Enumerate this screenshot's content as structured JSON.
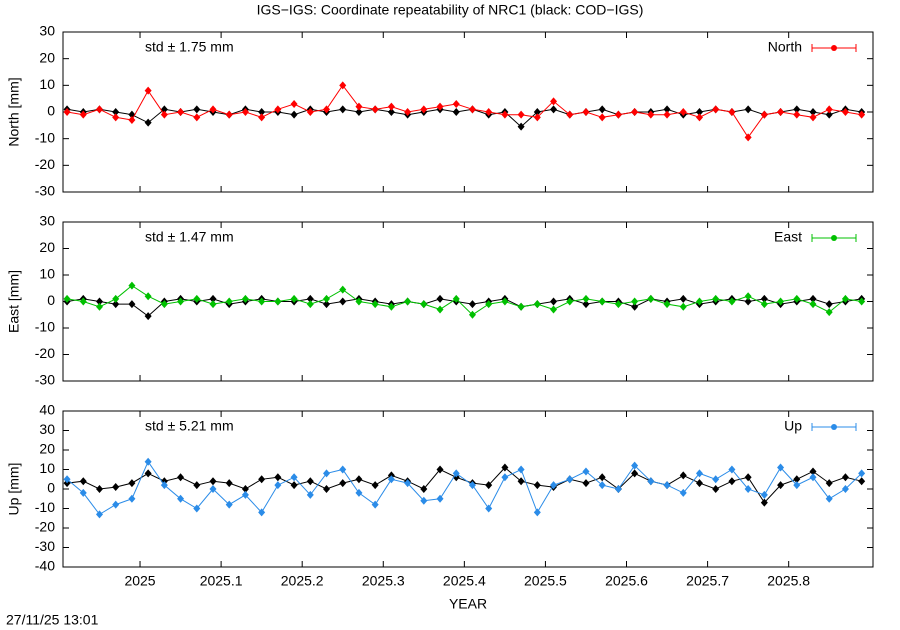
{
  "title": "IGS−IGS: Coordinate repeatability of NRC1 (black: COD−IGS)",
  "timestamp": "27/11/25 13:01",
  "chart_data": [
    {
      "type": "line",
      "ylabel": "North [mm]",
      "annotation": "std ± 1.75 mm",
      "annotation_color": "#ff0000",
      "xlim": [
        2024.905,
        2025.904
      ],
      "xticks": [
        2025,
        2025.1,
        2025.2,
        2025.3,
        2025.4,
        2025.5,
        2025.6,
        2025.7,
        2025.8
      ],
      "ylim": [
        -30,
        30
      ],
      "yticks": [
        -30,
        -20,
        -10,
        0,
        10,
        20,
        30
      ],
      "x": [
        2024.91,
        2024.93,
        2024.95,
        2024.97,
        2024.99,
        2025.01,
        2025.03,
        2025.05,
        2025.07,
        2025.09,
        2025.11,
        2025.13,
        2025.15,
        2025.17,
        2025.19,
        2025.21,
        2025.23,
        2025.25,
        2025.27,
        2025.29,
        2025.31,
        2025.33,
        2025.35,
        2025.37,
        2025.39,
        2025.41,
        2025.43,
        2025.45,
        2025.47,
        2025.49,
        2025.51,
        2025.53,
        2025.55,
        2025.57,
        2025.59,
        2025.61,
        2025.63,
        2025.65,
        2025.67,
        2025.69,
        2025.71,
        2025.73,
        2025.75,
        2025.77,
        2025.79,
        2025.81,
        2025.83,
        2025.85,
        2025.87,
        2025.89
      ],
      "series": [
        {
          "color": "#000000",
          "values": [
            1,
            0,
            1,
            0,
            -1,
            -4,
            1,
            0,
            1,
            0,
            -1,
            1,
            0,
            0,
            -1,
            1,
            0,
            1,
            0,
            1,
            0,
            -1,
            0,
            1,
            0,
            1,
            -1,
            0,
            -5.5,
            0,
            1,
            -1,
            0,
            1,
            -1,
            0,
            0,
            1,
            -1,
            0,
            1,
            0,
            1,
            -1,
            0,
            1,
            0,
            -1,
            1,
            0
          ]
        },
        {
          "name": "North",
          "color": "#ff0000",
          "values": [
            0,
            -1,
            1,
            -2,
            -3,
            8,
            -1,
            0,
            -2,
            1,
            -1,
            0,
            -2,
            1,
            3,
            0,
            1,
            10,
            2,
            1,
            2,
            0,
            1,
            2,
            3,
            1,
            0,
            -1,
            -1,
            -2,
            4,
            -1,
            0,
            -2,
            -1,
            0,
            -1,
            -1,
            0,
            -2,
            1,
            0,
            -9.5,
            -1,
            0,
            -1,
            -2,
            1,
            0,
            -1
          ]
        }
      ]
    },
    {
      "type": "line",
      "ylabel": "East [mm]",
      "annotation": "std ± 1.47 mm",
      "annotation_color": "#00c000",
      "xlim": [
        2024.905,
        2025.904
      ],
      "xticks": [
        2025,
        2025.1,
        2025.2,
        2025.3,
        2025.4,
        2025.5,
        2025.6,
        2025.7,
        2025.8
      ],
      "ylim": [
        -30,
        30
      ],
      "yticks": [
        -30,
        -20,
        -10,
        0,
        10,
        20,
        30
      ],
      "x": [
        2024.91,
        2024.93,
        2024.95,
        2024.97,
        2024.99,
        2025.01,
        2025.03,
        2025.05,
        2025.07,
        2025.09,
        2025.11,
        2025.13,
        2025.15,
        2025.17,
        2025.19,
        2025.21,
        2025.23,
        2025.25,
        2025.27,
        2025.29,
        2025.31,
        2025.33,
        2025.35,
        2025.37,
        2025.39,
        2025.41,
        2025.43,
        2025.45,
        2025.47,
        2025.49,
        2025.51,
        2025.53,
        2025.55,
        2025.57,
        2025.59,
        2025.61,
        2025.63,
        2025.65,
        2025.67,
        2025.69,
        2025.71,
        2025.73,
        2025.75,
        2025.77,
        2025.79,
        2025.81,
        2025.83,
        2025.85,
        2025.87,
        2025.89
      ],
      "series": [
        {
          "color": "#000000",
          "values": [
            0,
            1,
            0,
            -1,
            -1,
            -5.5,
            0,
            1,
            0,
            1,
            -1,
            0,
            1,
            0,
            0,
            1,
            -1,
            0,
            1,
            0,
            -1,
            0,
            -1,
            1,
            0,
            -1,
            0,
            1,
            -2,
            -1,
            0,
            1,
            -1,
            0,
            0,
            -2,
            1,
            0,
            1,
            -1,
            0,
            1,
            0,
            1,
            -1,
            0,
            1,
            -1,
            0,
            1
          ]
        },
        {
          "name": "East",
          "color": "#00c000",
          "values": [
            1,
            0,
            -2,
            1,
            6,
            2,
            -1,
            0,
            1,
            -1,
            0,
            1,
            0,
            0,
            1,
            -1,
            1,
            4.5,
            0,
            -1,
            -2,
            0,
            -1,
            -3,
            1,
            -5,
            -1,
            0,
            -2,
            -1,
            -3,
            0,
            1,
            0,
            -1,
            0,
            1,
            -1,
            -2,
            0,
            1,
            0,
            2,
            -1,
            0,
            1,
            -1,
            -4,
            1,
            0
          ]
        }
      ]
    },
    {
      "type": "line",
      "ylabel": "Up [mm]",
      "xlabel": "YEAR",
      "annotation": "std ± 5.21 mm",
      "annotation_color": "#2b8ce8",
      "xlim": [
        2024.905,
        2025.904
      ],
      "xticks": [
        2025,
        2025.1,
        2025.2,
        2025.3,
        2025.4,
        2025.5,
        2025.6,
        2025.7,
        2025.8
      ],
      "ylim": [
        -40,
        40
      ],
      "yticks": [
        -40,
        -30,
        -20,
        -10,
        0,
        10,
        20,
        30,
        40
      ],
      "x": [
        2024.91,
        2024.93,
        2024.95,
        2024.97,
        2024.99,
        2025.01,
        2025.03,
        2025.05,
        2025.07,
        2025.09,
        2025.11,
        2025.13,
        2025.15,
        2025.17,
        2025.19,
        2025.21,
        2025.23,
        2025.25,
        2025.27,
        2025.29,
        2025.31,
        2025.33,
        2025.35,
        2025.37,
        2025.39,
        2025.41,
        2025.43,
        2025.45,
        2025.47,
        2025.49,
        2025.51,
        2025.53,
        2025.55,
        2025.57,
        2025.59,
        2025.61,
        2025.63,
        2025.65,
        2025.67,
        2025.69,
        2025.71,
        2025.73,
        2025.75,
        2025.77,
        2025.79,
        2025.81,
        2025.83,
        2025.85,
        2025.87,
        2025.89
      ],
      "series": [
        {
          "color": "#000000",
          "values": [
            3,
            4,
            0,
            1,
            3,
            8,
            4,
            6,
            2,
            4,
            3,
            0,
            5,
            6,
            2,
            4,
            0,
            3,
            5,
            2,
            7,
            4,
            0,
            10,
            6,
            3,
            2,
            11,
            4,
            2,
            1,
            5,
            3,
            6,
            0,
            8,
            4,
            2,
            7,
            3,
            0,
            4,
            6,
            -7,
            2,
            5,
            9,
            3,
            6,
            4
          ]
        },
        {
          "name": "Up",
          "color": "#2b8ce8",
          "values": [
            5,
            -2,
            -13,
            -8,
            -5,
            14,
            2,
            -5,
            -10,
            0,
            -8,
            -3,
            -12,
            2,
            6,
            -3,
            8,
            10,
            -2,
            -8,
            5,
            3,
            -6,
            -5,
            8,
            2,
            -10,
            6,
            10,
            -12,
            2,
            5,
            9,
            2,
            0,
            12,
            4,
            2,
            -2,
            8,
            5,
            10,
            0,
            -3,
            11,
            2,
            6,
            -5,
            0,
            8
          ]
        }
      ]
    }
  ]
}
